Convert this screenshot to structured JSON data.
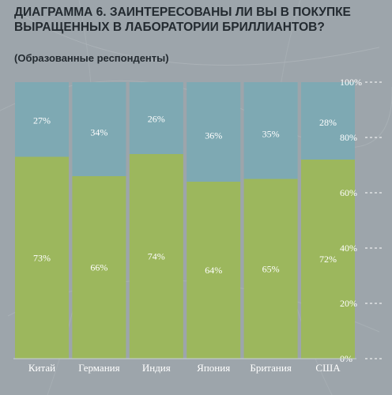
{
  "chart_data": {
    "type": "bar",
    "stacked": true,
    "title": "ДИАГРАММА 6. ЗАИНТЕРЕСОВАНЫ ЛИ ВЫ В ПОКУПКЕ ВЫРАЩЕННЫХ В ЛАБОРАТОРИИ БРИЛЛИАНТОВ?",
    "subtitle": "(Образованные респонденты)",
    "categories": [
      "Китай",
      "Германия",
      "Индия",
      "Япония",
      "Британия",
      "США"
    ],
    "series": [
      {
        "values": [
          73,
          66,
          74,
          64,
          65,
          72
        ],
        "labels": [
          "73%",
          "66%",
          "74%",
          "64%",
          "65%",
          "72%"
        ]
      },
      {
        "values": [
          27,
          34,
          26,
          36,
          35,
          28
        ],
        "labels": [
          "27%",
          "34%",
          "26%",
          "36%",
          "35%",
          "28%"
        ]
      }
    ],
    "yticks": [
      "0%",
      "20%",
      "40%",
      "60%",
      "80%",
      "100%"
    ],
    "ylim": [
      0,
      100
    ],
    "grid": true,
    "colors": {
      "lower": "#9cb75d",
      "upper": "#7ea9b3",
      "background": "#9da5ab"
    }
  }
}
